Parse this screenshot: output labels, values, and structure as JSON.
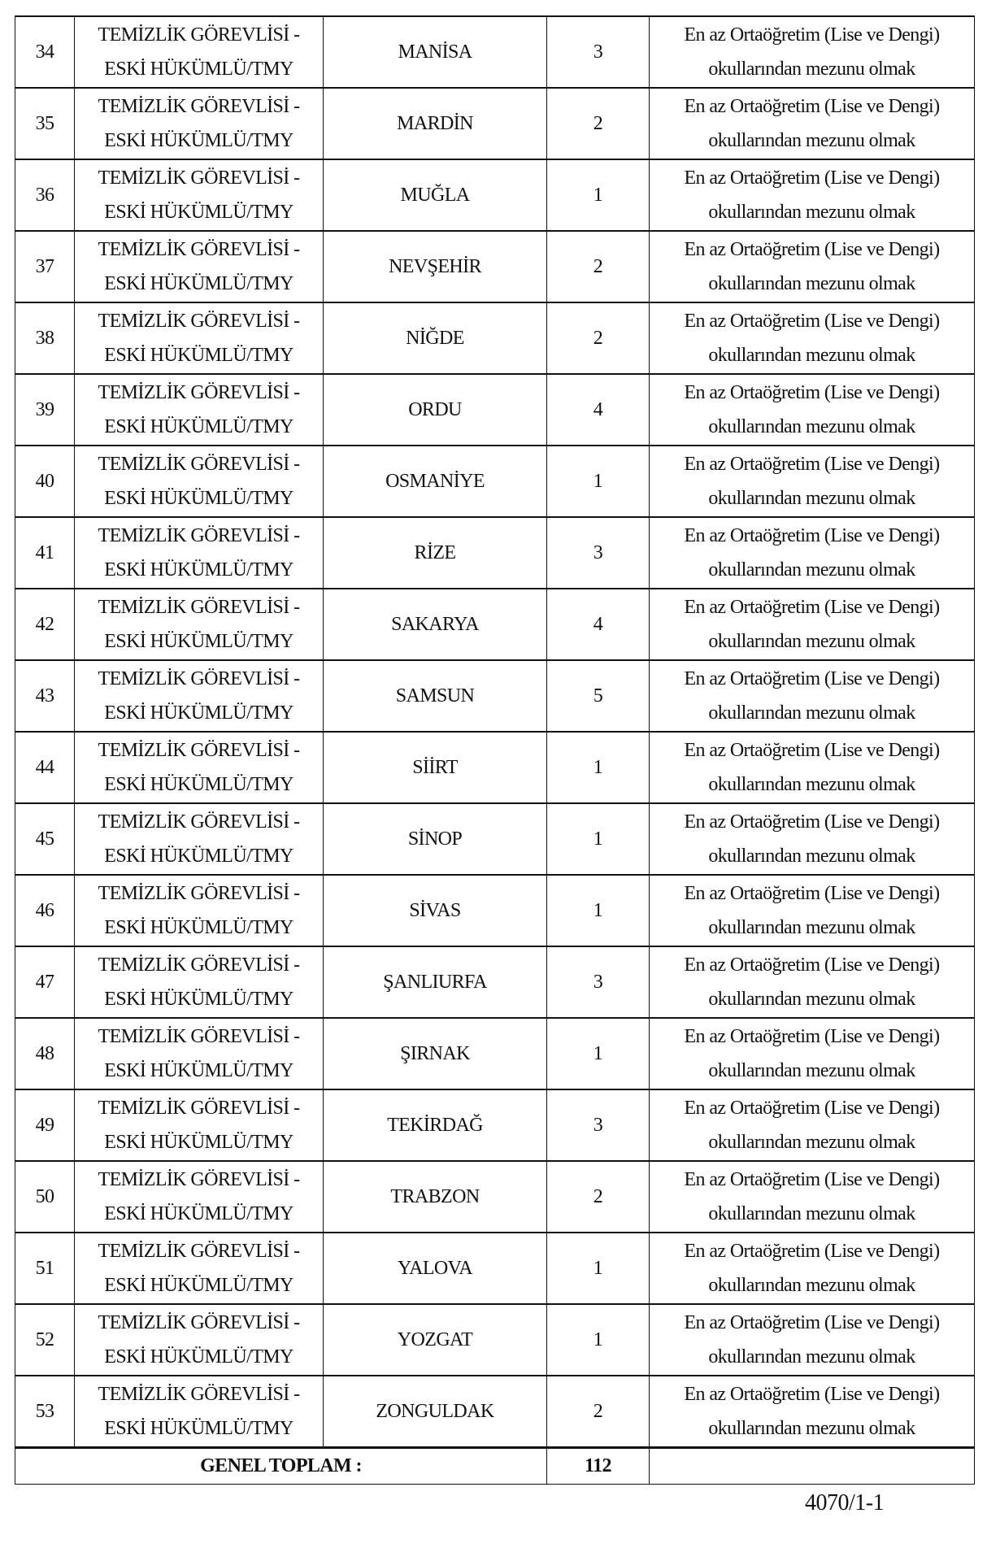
{
  "table": {
    "rows": [
      {
        "no": "34",
        "title1": "TEMİZLİK GÖREVLİSİ -",
        "title2": "ESKİ HÜKÜMLÜ/TMY",
        "province": "MANİSA",
        "count": "3",
        "req1": "En az Ortaöğretim (Lise ve Dengi)",
        "req2": "okullarından mezunu olmak"
      },
      {
        "no": "35",
        "title1": "TEMİZLİK GÖREVLİSİ -",
        "title2": "ESKİ HÜKÜMLÜ/TMY",
        "province": "MARDİN",
        "count": "2",
        "req1": "En az Ortaöğretim (Lise ve Dengi)",
        "req2": "okullarından mezunu olmak"
      },
      {
        "no": "36",
        "title1": "TEMİZLİK GÖREVLİSİ -",
        "title2": "ESKİ HÜKÜMLÜ/TMY",
        "province": "MUĞLA",
        "count": "1",
        "req1": "En az Ortaöğretim (Lise ve Dengi)",
        "req2": "okullarından mezunu olmak"
      },
      {
        "no": "37",
        "title1": "TEMİZLİK GÖREVLİSİ -",
        "title2": "ESKİ HÜKÜMLÜ/TMY",
        "province": "NEVŞEHİR",
        "count": "2",
        "req1": "En az Ortaöğretim (Lise ve Dengi)",
        "req2": "okullarından mezunu olmak"
      },
      {
        "no": "38",
        "title1": "TEMİZLİK GÖREVLİSİ -",
        "title2": "ESKİ HÜKÜMLÜ/TMY",
        "province": "NİĞDE",
        "count": "2",
        "req1": "En az Ortaöğretim (Lise ve Dengi)",
        "req2": "okullarından mezunu olmak"
      },
      {
        "no": "39",
        "title1": "TEMİZLİK GÖREVLİSİ -",
        "title2": "ESKİ HÜKÜMLÜ/TMY",
        "province": "ORDU",
        "count": "4",
        "req1": "En az Ortaöğretim (Lise ve Dengi)",
        "req2": "okullarından mezunu olmak"
      },
      {
        "no": "40",
        "title1": "TEMİZLİK GÖREVLİSİ -",
        "title2": "ESKİ HÜKÜMLÜ/TMY",
        "province": "OSMANİYE",
        "count": "1",
        "req1": "En az Ortaöğretim (Lise ve Dengi)",
        "req2": "okullarından mezunu olmak"
      },
      {
        "no": "41",
        "title1": "TEMİZLİK GÖREVLİSİ -",
        "title2": "ESKİ HÜKÜMLÜ/TMY",
        "province": "RİZE",
        "count": "3",
        "req1": "En az Ortaöğretim (Lise ve Dengi)",
        "req2": "okullarından mezunu olmak"
      },
      {
        "no": "42",
        "title1": "TEMİZLİK GÖREVLİSİ -",
        "title2": "ESKİ HÜKÜMLÜ/TMY",
        "province": "SAKARYA",
        "count": "4",
        "req1": "En az Ortaöğretim (Lise ve Dengi)",
        "req2": "okullarından mezunu olmak"
      },
      {
        "no": "43",
        "title1": "TEMİZLİK GÖREVLİSİ -",
        "title2": "ESKİ HÜKÜMLÜ/TMY",
        "province": "SAMSUN",
        "count": "5",
        "req1": "En az Ortaöğretim (Lise ve Dengi)",
        "req2": "okullarından mezunu olmak"
      },
      {
        "no": "44",
        "title1": "TEMİZLİK GÖREVLİSİ -",
        "title2": "ESKİ HÜKÜMLÜ/TMY",
        "province": "SİİRT",
        "count": "1",
        "req1": "En az Ortaöğretim (Lise ve Dengi)",
        "req2": "okullarından mezunu olmak"
      },
      {
        "no": "45",
        "title1": "TEMİZLİK GÖREVLİSİ -",
        "title2": "ESKİ HÜKÜMLÜ/TMY",
        "province": "SİNOP",
        "count": "1",
        "req1": "En az Ortaöğretim (Lise ve Dengi)",
        "req2": "okullarından mezunu olmak"
      },
      {
        "no": "46",
        "title1": "TEMİZLİK GÖREVLİSİ -",
        "title2": "ESKİ HÜKÜMLÜ/TMY",
        "province": "SİVAS",
        "count": "1",
        "req1": "En az Ortaöğretim (Lise ve Dengi)",
        "req2": "okullarından mezunu olmak"
      },
      {
        "no": "47",
        "title1": "TEMİZLİK GÖREVLİSİ -",
        "title2": "ESKİ HÜKÜMLÜ/TMY",
        "province": "ŞANLIURFA",
        "count": "3",
        "req1": "En az Ortaöğretim (Lise ve Dengi)",
        "req2": "okullarından mezunu olmak"
      },
      {
        "no": "48",
        "title1": "TEMİZLİK GÖREVLİSİ -",
        "title2": "ESKİ HÜKÜMLÜ/TMY",
        "province": "ŞIRNAK",
        "count": "1",
        "req1": "En az Ortaöğretim (Lise ve Dengi)",
        "req2": "okullarından mezunu olmak"
      },
      {
        "no": "49",
        "title1": "TEMİZLİK GÖREVLİSİ -",
        "title2": "ESKİ HÜKÜMLÜ/TMY",
        "province": "TEKİRDAĞ",
        "count": "3",
        "req1": "En az Ortaöğretim (Lise ve Dengi)",
        "req2": "okullarından mezunu olmak"
      },
      {
        "no": "50",
        "title1": "TEMİZLİK GÖREVLİSİ -",
        "title2": "ESKİ HÜKÜMLÜ/TMY",
        "province": "TRABZON",
        "count": "2",
        "req1": "En az Ortaöğretim (Lise ve Dengi)",
        "req2": "okullarından mezunu olmak"
      },
      {
        "no": "51",
        "title1": "TEMİZLİK GÖREVLİSİ -",
        "title2": "ESKİ HÜKÜMLÜ/TMY",
        "province": "YALOVA",
        "count": "1",
        "req1": "En az Ortaöğretim (Lise ve Dengi)",
        "req2": "okullarından mezunu olmak"
      },
      {
        "no": "52",
        "title1": "TEMİZLİK GÖREVLİSİ -",
        "title2": "ESKİ HÜKÜMLÜ/TMY",
        "province": "YOZGAT",
        "count": "1",
        "req1": "En az Ortaöğretim (Lise ve Dengi)",
        "req2": "okullarından mezunu olmak"
      },
      {
        "no": "53",
        "title1": "TEMİZLİK GÖREVLİSİ -",
        "title2": "ESKİ HÜKÜMLÜ/TMY",
        "province": "ZONGULDAK",
        "count": "2",
        "req1": "En az Ortaöğretim (Lise ve Dengi)",
        "req2": "okullarından mezunu olmak"
      }
    ],
    "total_label": "GENEL TOPLAM :",
    "total_value": "112"
  },
  "page_number": "4070/1-1"
}
